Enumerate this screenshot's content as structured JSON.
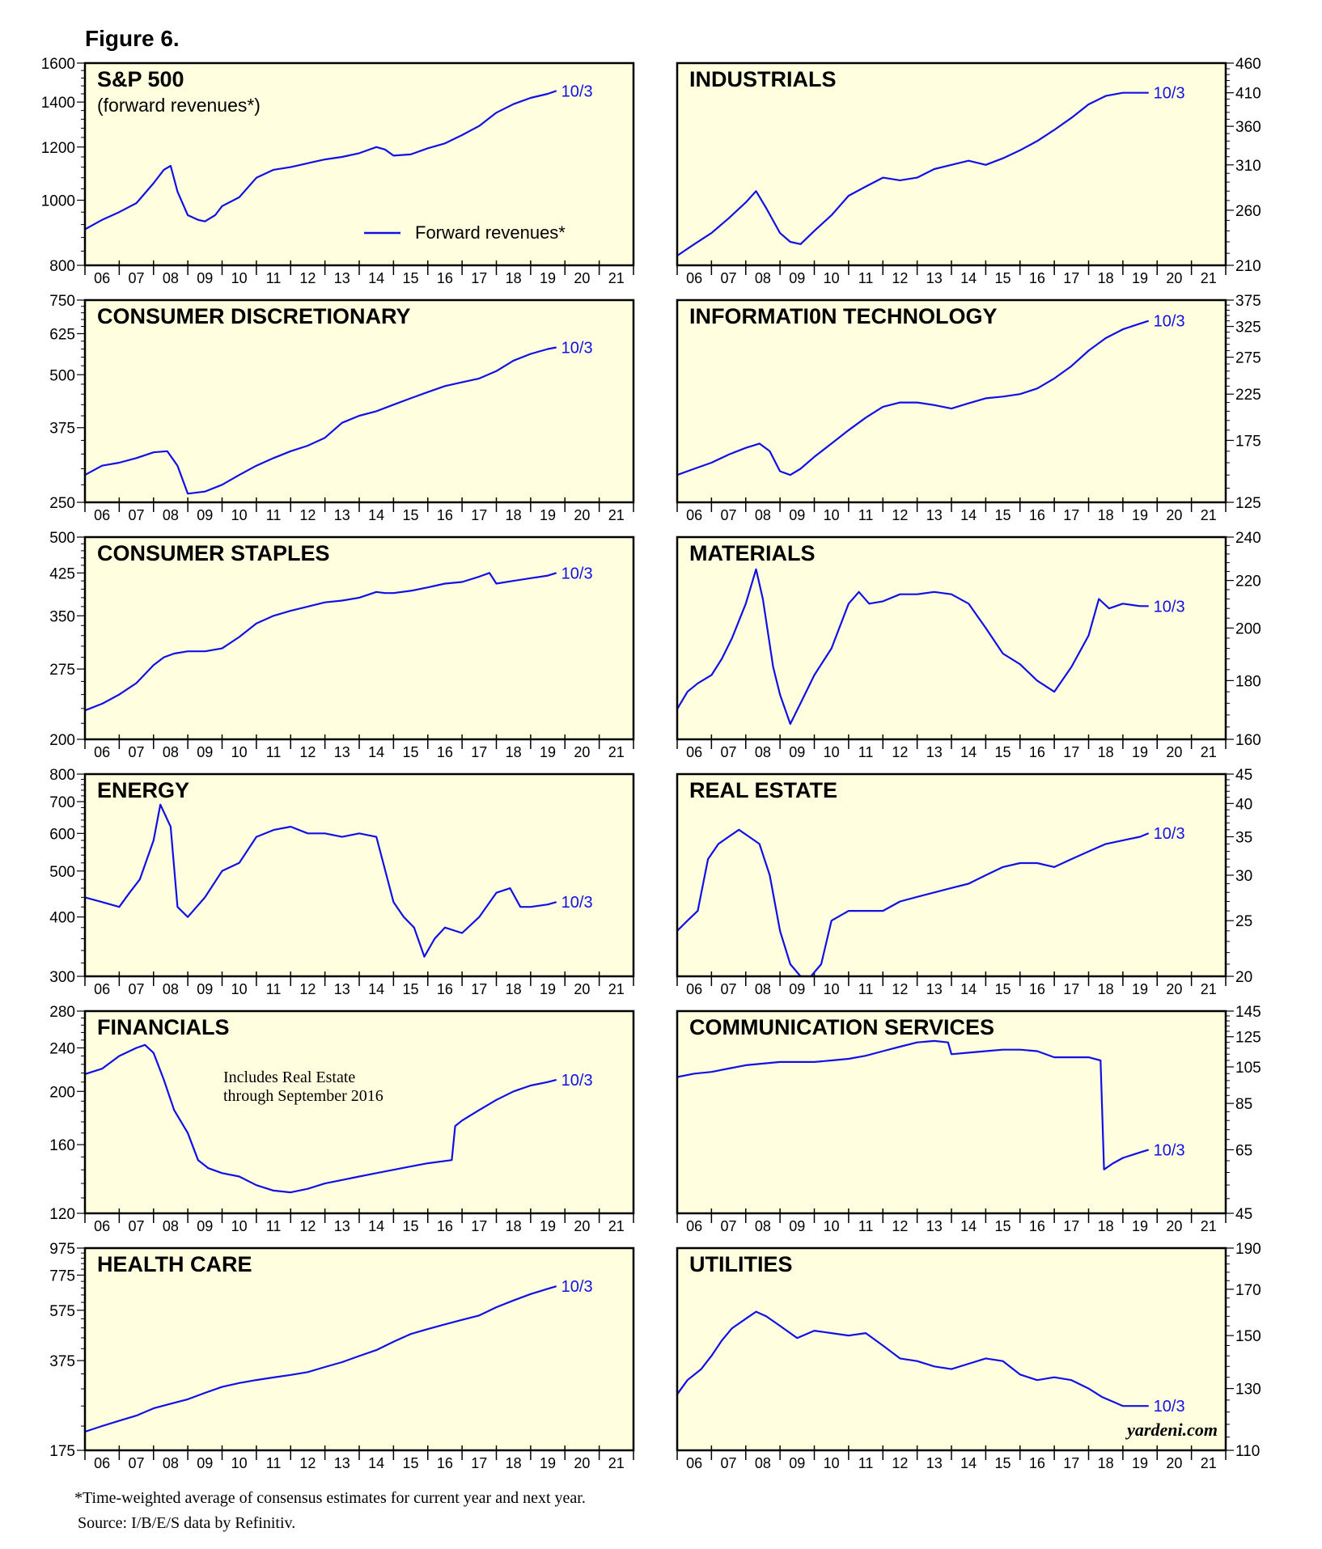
{
  "figure_title": "Figure 6.",
  "footnote": "*Time-weighted average of consensus estimates for current year and next year.",
  "source": "Source: I/B/E/S data by Refinitiv.",
  "watermark": "yardeni.com",
  "colors": {
    "series": "#1010e6",
    "panel_bg": "#ffffe0",
    "axis": "#000000"
  },
  "chart_data": [
    {
      "type": "line",
      "title": "S&P 500",
      "subtitle": "(forward revenues*)",
      "legend": {
        "label": "Forward revenues*",
        "position": "bottom-right"
      },
      "end_label": "10/3",
      "y_axis_side": "left",
      "y_scale": "log",
      "ylim": [
        800,
        1600
      ],
      "yticks": [
        800,
        1000,
        1200,
        1400,
        1600
      ],
      "xlim": [
        2006,
        2022
      ],
      "xtick_labels": [
        "06",
        "07",
        "08",
        "09",
        "10",
        "11",
        "12",
        "13",
        "14",
        "15",
        "16",
        "17",
        "18",
        "19",
        "20",
        "21"
      ],
      "x": [
        2006.0,
        2006.5,
        2007.0,
        2007.5,
        2008.0,
        2008.3,
        2008.5,
        2008.7,
        2009.0,
        2009.3,
        2009.5,
        2009.8,
        2010.0,
        2010.5,
        2011.0,
        2011.5,
        2012.0,
        2012.5,
        2013.0,
        2013.5,
        2014.0,
        2014.5,
        2014.75,
        2015.0,
        2015.5,
        2016.0,
        2016.5,
        2017.0,
        2017.5,
        2018.0,
        2018.5,
        2019.0,
        2019.5,
        2019.75
      ],
      "values": [
        905,
        935,
        960,
        990,
        1060,
        1110,
        1125,
        1030,
        950,
        935,
        930,
        950,
        980,
        1010,
        1080,
        1110,
        1120,
        1135,
        1150,
        1160,
        1175,
        1200,
        1190,
        1165,
        1170,
        1195,
        1215,
        1250,
        1290,
        1350,
        1390,
        1420,
        1440,
        1455
      ]
    },
    {
      "type": "line",
      "title": "INDUSTRIALS",
      "end_label": "10/3",
      "y_axis_side": "right",
      "y_scale": "log",
      "ylim": [
        210,
        460
      ],
      "yticks": [
        210,
        260,
        310,
        360,
        410,
        460
      ],
      "xlim": [
        2006,
        2022
      ],
      "xtick_labels": [
        "06",
        "07",
        "08",
        "09",
        "10",
        "11",
        "12",
        "13",
        "14",
        "15",
        "16",
        "17",
        "18",
        "19",
        "20",
        "21"
      ],
      "x": [
        2006.0,
        2006.5,
        2007.0,
        2007.5,
        2008.0,
        2008.3,
        2008.6,
        2009.0,
        2009.3,
        2009.6,
        2010.0,
        2010.5,
        2011.0,
        2011.5,
        2012.0,
        2012.5,
        2013.0,
        2013.5,
        2014.0,
        2014.5,
        2015.0,
        2015.5,
        2016.0,
        2016.5,
        2017.0,
        2017.5,
        2018.0,
        2018.5,
        2019.0,
        2019.5,
        2019.75
      ],
      "values": [
        218,
        228,
        238,
        252,
        268,
        280,
        262,
        238,
        230,
        228,
        240,
        255,
        275,
        285,
        295,
        292,
        295,
        305,
        310,
        315,
        310,
        318,
        328,
        340,
        355,
        372,
        392,
        405,
        410,
        410,
        410
      ]
    },
    {
      "type": "line",
      "title": "CONSUMER DISCRETIONARY",
      "end_label": "10/3",
      "y_axis_side": "left",
      "y_scale": "log",
      "ylim": [
        250,
        750
      ],
      "yticks": [
        250,
        375,
        500,
        625,
        750
      ],
      "xlim": [
        2006,
        2022
      ],
      "xtick_labels": [
        "06",
        "07",
        "08",
        "09",
        "10",
        "11",
        "12",
        "13",
        "14",
        "15",
        "16",
        "17",
        "18",
        "19",
        "20",
        "21"
      ],
      "x": [
        2006.0,
        2006.5,
        2007.0,
        2007.5,
        2008.0,
        2008.4,
        2008.7,
        2009.0,
        2009.5,
        2010.0,
        2010.5,
        2011.0,
        2011.5,
        2012.0,
        2012.5,
        2013.0,
        2013.5,
        2014.0,
        2014.5,
        2015.0,
        2015.5,
        2016.0,
        2016.5,
        2017.0,
        2017.5,
        2018.0,
        2018.5,
        2019.0,
        2019.5,
        2019.75
      ],
      "values": [
        290,
        305,
        310,
        318,
        328,
        330,
        305,
        262,
        265,
        275,
        290,
        305,
        318,
        330,
        340,
        355,
        385,
        400,
        410,
        425,
        440,
        455,
        470,
        480,
        490,
        510,
        540,
        560,
        575,
        580
      ]
    },
    {
      "type": "line",
      "title": "INFORMATI0N TECHNOLOGY",
      "end_label": "10/3",
      "y_axis_side": "right",
      "y_scale": "log",
      "ylim": [
        125,
        375
      ],
      "yticks": [
        125,
        175,
        225,
        275,
        325,
        375
      ],
      "xlim": [
        2006,
        2022
      ],
      "xtick_labels": [
        "06",
        "07",
        "08",
        "09",
        "10",
        "11",
        "12",
        "13",
        "14",
        "15",
        "16",
        "17",
        "18",
        "19",
        "20",
        "21"
      ],
      "x": [
        2006.0,
        2006.5,
        2007.0,
        2007.5,
        2008.0,
        2008.4,
        2008.7,
        2009.0,
        2009.3,
        2009.6,
        2010.0,
        2010.5,
        2011.0,
        2011.5,
        2012.0,
        2012.5,
        2013.0,
        2013.5,
        2014.0,
        2014.5,
        2015.0,
        2015.5,
        2016.0,
        2016.5,
        2017.0,
        2017.5,
        2018.0,
        2018.5,
        2019.0,
        2019.5,
        2019.75
      ],
      "values": [
        145,
        150,
        155,
        162,
        168,
        172,
        165,
        148,
        145,
        150,
        160,
        172,
        185,
        198,
        210,
        215,
        215,
        212,
        208,
        214,
        220,
        222,
        225,
        232,
        245,
        262,
        285,
        305,
        320,
        330,
        335
      ]
    },
    {
      "type": "line",
      "title": "CONSUMER STAPLES",
      "end_label": "10/3",
      "y_axis_side": "left",
      "y_scale": "log",
      "ylim": [
        200,
        500
      ],
      "yticks": [
        200,
        275,
        350,
        425,
        500
      ],
      "xlim": [
        2006,
        2022
      ],
      "xtick_labels": [
        "06",
        "07",
        "08",
        "09",
        "10",
        "11",
        "12",
        "13",
        "14",
        "15",
        "16",
        "17",
        "18",
        "19",
        "20",
        "21"
      ],
      "x": [
        2006.0,
        2006.5,
        2007.0,
        2007.5,
        2008.0,
        2008.3,
        2008.6,
        2009.0,
        2009.5,
        2010.0,
        2010.5,
        2011.0,
        2011.5,
        2012.0,
        2012.5,
        2013.0,
        2013.5,
        2014.0,
        2014.5,
        2014.75,
        2015.0,
        2015.5,
        2016.0,
        2016.5,
        2017.0,
        2017.5,
        2017.8,
        2018.0,
        2018.5,
        2019.0,
        2019.5,
        2019.75
      ],
      "values": [
        228,
        235,
        245,
        258,
        280,
        290,
        295,
        298,
        298,
        302,
        318,
        338,
        350,
        358,
        365,
        372,
        375,
        380,
        390,
        388,
        388,
        392,
        398,
        405,
        408,
        418,
        425,
        405,
        410,
        415,
        420,
        425
      ]
    },
    {
      "type": "line",
      "title": "MATERIALS",
      "end_label": "10/3",
      "y_axis_side": "right",
      "y_scale": "log",
      "ylim": [
        160,
        240
      ],
      "yticks": [
        160,
        180,
        200,
        220,
        240
      ],
      "xlim": [
        2006,
        2022
      ],
      "xtick_labels": [
        "06",
        "07",
        "08",
        "09",
        "10",
        "11",
        "12",
        "13",
        "14",
        "15",
        "16",
        "17",
        "18",
        "19",
        "20",
        "21"
      ],
      "x": [
        2006.0,
        2006.3,
        2006.6,
        2007.0,
        2007.3,
        2007.6,
        2008.0,
        2008.3,
        2008.5,
        2008.8,
        2009.0,
        2009.3,
        2009.6,
        2010.0,
        2010.5,
        2011.0,
        2011.3,
        2011.6,
        2012.0,
        2012.5,
        2013.0,
        2013.5,
        2014.0,
        2014.5,
        2015.0,
        2015.5,
        2016.0,
        2016.5,
        2017.0,
        2017.5,
        2018.0,
        2018.3,
        2018.6,
        2019.0,
        2019.5,
        2019.75
      ],
      "values": [
        170,
        176,
        179,
        182,
        188,
        196,
        210,
        225,
        212,
        185,
        175,
        165,
        172,
        182,
        192,
        210,
        215,
        210,
        211,
        214,
        214,
        215,
        214,
        210,
        200,
        190,
        186,
        180,
        176,
        185,
        197,
        212,
        208,
        210,
        209,
        209
      ]
    },
    {
      "type": "line",
      "title": "ENERGY",
      "end_label": "10/3",
      "y_axis_side": "left",
      "y_scale": "log",
      "ylim": [
        300,
        800
      ],
      "yticks": [
        300,
        400,
        500,
        600,
        700,
        800
      ],
      "xlim": [
        2006,
        2022
      ],
      "xtick_labels": [
        "06",
        "07",
        "08",
        "09",
        "10",
        "11",
        "12",
        "13",
        "14",
        "15",
        "16",
        "17",
        "18",
        "19",
        "20",
        "21"
      ],
      "x": [
        2006.0,
        2006.5,
        2007.0,
        2007.3,
        2007.6,
        2008.0,
        2008.2,
        2008.5,
        2008.7,
        2009.0,
        2009.5,
        2010.0,
        2010.5,
        2011.0,
        2011.5,
        2012.0,
        2012.5,
        2013.0,
        2013.5,
        2014.0,
        2014.5,
        2015.0,
        2015.3,
        2015.6,
        2015.9,
        2016.2,
        2016.5,
        2017.0,
        2017.5,
        2018.0,
        2018.4,
        2018.7,
        2019.0,
        2019.5,
        2019.75
      ],
      "values": [
        440,
        430,
        420,
        450,
        480,
        580,
        690,
        620,
        420,
        400,
        440,
        500,
        520,
        590,
        610,
        620,
        600,
        600,
        590,
        600,
        590,
        430,
        400,
        380,
        330,
        360,
        380,
        370,
        400,
        450,
        460,
        420,
        420,
        425,
        430
      ]
    },
    {
      "type": "line",
      "title": "REAL ESTATE",
      "end_label": "10/3",
      "y_axis_side": "right",
      "y_scale": "log",
      "ylim": [
        20,
        45
      ],
      "yticks": [
        20,
        25,
        30,
        35,
        40,
        45
      ],
      "xlim": [
        2006,
        2022
      ],
      "xtick_labels": [
        "06",
        "07",
        "08",
        "09",
        "10",
        "11",
        "12",
        "13",
        "14",
        "15",
        "16",
        "17",
        "18",
        "19",
        "20",
        "21"
      ],
      "x": [
        2006.0,
        2006.3,
        2006.6,
        2006.9,
        2007.2,
        2007.5,
        2007.8,
        2008.1,
        2008.4,
        2008.7,
        2009.0,
        2009.3,
        2009.6,
        2009.9,
        2010.2,
        2010.5,
        2011.0,
        2011.5,
        2012.0,
        2012.5,
        2013.0,
        2013.5,
        2014.0,
        2014.5,
        2015.0,
        2015.5,
        2016.0,
        2016.5,
        2017.0,
        2017.5,
        2018.0,
        2018.5,
        2019.0,
        2019.5,
        2019.75
      ],
      "values": [
        24,
        25,
        26,
        32,
        34,
        35,
        36,
        35,
        34,
        30,
        24,
        21,
        20,
        20,
        21,
        25,
        26,
        26,
        26,
        27,
        27.5,
        28,
        28.5,
        29,
        30,
        31,
        31.5,
        31.5,
        31,
        32,
        33,
        34,
        34.5,
        35,
        35.5
      ]
    },
    {
      "type": "line",
      "title": "FINANCIALS",
      "annotation": "Includes Real Estate through September 2016",
      "end_label": "10/3",
      "y_axis_side": "left",
      "y_scale": "log",
      "ylim": [
        120,
        280
      ],
      "yticks": [
        120,
        160,
        200,
        240,
        280
      ],
      "xlim": [
        2006,
        2022
      ],
      "xtick_labels": [
        "06",
        "07",
        "08",
        "09",
        "10",
        "11",
        "12",
        "13",
        "14",
        "15",
        "16",
        "17",
        "18",
        "19",
        "20",
        "21"
      ],
      "x": [
        2006.0,
        2006.5,
        2007.0,
        2007.5,
        2007.75,
        2008.0,
        2008.3,
        2008.6,
        2009.0,
        2009.3,
        2009.6,
        2010.0,
        2010.5,
        2011.0,
        2011.5,
        2012.0,
        2012.5,
        2013.0,
        2013.5,
        2014.0,
        2014.5,
        2015.0,
        2015.5,
        2016.0,
        2016.7,
        2016.8,
        2017.0,
        2017.5,
        2018.0,
        2018.5,
        2019.0,
        2019.5,
        2019.75
      ],
      "values": [
        215,
        220,
        232,
        240,
        243,
        235,
        210,
        185,
        168,
        150,
        145,
        142,
        140,
        135,
        132,
        131,
        133,
        136,
        138,
        140,
        142,
        144,
        146,
        148,
        150,
        173,
        177,
        185,
        193,
        200,
        205,
        208,
        210
      ]
    },
    {
      "type": "line",
      "title": "COMMUNICATION SERVICES",
      "end_label": "10/3",
      "y_axis_side": "right",
      "y_scale": "log",
      "ylim": [
        45,
        145
      ],
      "yticks": [
        45,
        65,
        85,
        105,
        125,
        145
      ],
      "xlim": [
        2006,
        2022
      ],
      "xtick_labels": [
        "06",
        "07",
        "08",
        "09",
        "10",
        "11",
        "12",
        "13",
        "14",
        "15",
        "16",
        "17",
        "18",
        "19",
        "20",
        "21"
      ],
      "x": [
        2006.0,
        2006.5,
        2007.0,
        2007.5,
        2008.0,
        2008.5,
        2009.0,
        2009.5,
        2010.0,
        2010.5,
        2011.0,
        2011.5,
        2012.0,
        2012.5,
        2013.0,
        2013.5,
        2013.9,
        2014.0,
        2014.5,
        2015.0,
        2015.5,
        2016.0,
        2016.5,
        2017.0,
        2017.5,
        2018.0,
        2018.35,
        2018.45,
        2018.7,
        2019.0,
        2019.5,
        2019.75
      ],
      "values": [
        99,
        101,
        102,
        104,
        106,
        107,
        108,
        108,
        108,
        109,
        110,
        112,
        115,
        118,
        121,
        122,
        121,
        113,
        114,
        115,
        116,
        116,
        115,
        111,
        111,
        111,
        109,
        58,
        60,
        62,
        64,
        65
      ]
    },
    {
      "type": "line",
      "title": "HEALTH CARE",
      "end_label": "10/3",
      "y_axis_side": "left",
      "y_scale": "log",
      "ylim": [
        175,
        975
      ],
      "yticks": [
        175,
        375,
        575,
        775,
        975
      ],
      "xlim": [
        2006,
        2022
      ],
      "xtick_labels": [
        "06",
        "07",
        "08",
        "09",
        "10",
        "11",
        "12",
        "13",
        "14",
        "15",
        "16",
        "17",
        "18",
        "19",
        "20",
        "21"
      ],
      "x": [
        2006.0,
        2006.5,
        2007.0,
        2007.5,
        2008.0,
        2008.5,
        2009.0,
        2009.5,
        2010.0,
        2010.5,
        2011.0,
        2011.5,
        2012.0,
        2012.5,
        2013.0,
        2013.5,
        2014.0,
        2014.5,
        2015.0,
        2015.5,
        2016.0,
        2016.5,
        2017.0,
        2017.5,
        2018.0,
        2018.5,
        2019.0,
        2019.5,
        2019.75
      ],
      "values": [
        205,
        215,
        225,
        235,
        250,
        260,
        270,
        285,
        300,
        310,
        318,
        325,
        332,
        340,
        355,
        370,
        390,
        410,
        440,
        470,
        490,
        510,
        530,
        550,
        590,
        625,
        660,
        690,
        705
      ]
    },
    {
      "type": "line",
      "title": "UTILITIES",
      "end_label": "10/3",
      "y_axis_side": "right",
      "y_scale": "log",
      "ylim": [
        110,
        190
      ],
      "yticks": [
        110,
        130,
        150,
        170,
        190
      ],
      "xlim": [
        2006,
        2022
      ],
      "xtick_labels": [
        "06",
        "07",
        "08",
        "09",
        "10",
        "11",
        "12",
        "13",
        "14",
        "15",
        "16",
        "17",
        "18",
        "19",
        "20",
        "21"
      ],
      "x": [
        2006.0,
        2006.3,
        2006.7,
        2007.0,
        2007.3,
        2007.6,
        2008.0,
        2008.3,
        2008.6,
        2009.0,
        2009.5,
        2010.0,
        2010.5,
        2011.0,
        2011.5,
        2012.0,
        2012.5,
        2013.0,
        2013.5,
        2014.0,
        2014.5,
        2015.0,
        2015.5,
        2016.0,
        2016.5,
        2017.0,
        2017.5,
        2018.0,
        2018.4,
        2018.8,
        2019.0,
        2019.5,
        2019.75
      ],
      "values": [
        128,
        133,
        137,
        142,
        148,
        153,
        157,
        160,
        158,
        154,
        149,
        152,
        151,
        150,
        151,
        146,
        141,
        140,
        138,
        137,
        139,
        141,
        140,
        135,
        133,
        134,
        133,
        130,
        127,
        125,
        124,
        124,
        124
      ]
    }
  ]
}
